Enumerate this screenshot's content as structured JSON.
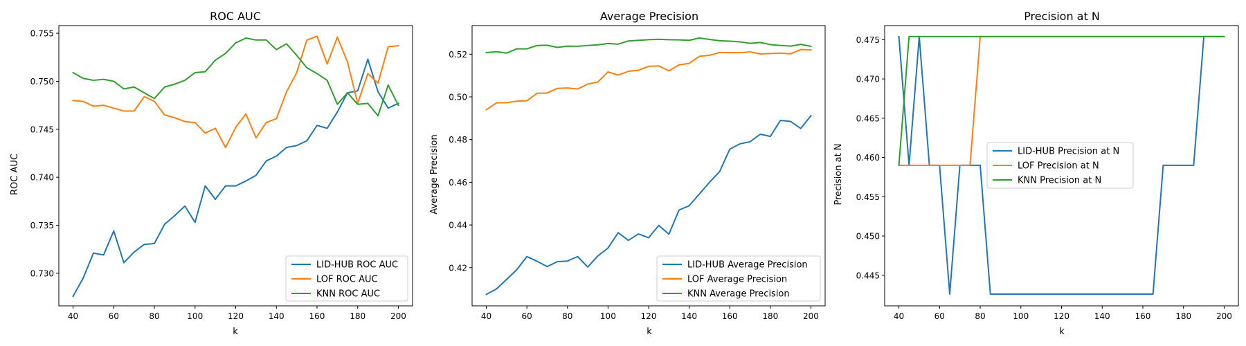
{
  "chart_data": [
    {
      "type": "line",
      "title": "ROC AUC",
      "xlabel": "k",
      "ylabel": "ROC AUC",
      "xlim": [
        33,
        207
      ],
      "ylim": [
        0.7266,
        0.7558
      ],
      "xticks": [
        40,
        60,
        80,
        100,
        120,
        140,
        160,
        180,
        200
      ],
      "yticks": [
        0.73,
        0.735,
        0.74,
        0.745,
        0.75,
        0.755
      ],
      "ytick_decimals": 3,
      "legend_position": "lower right",
      "x": [
        40,
        45,
        50,
        55,
        60,
        65,
        70,
        75,
        80,
        85,
        90,
        95,
        100,
        105,
        110,
        115,
        120,
        125,
        130,
        135,
        140,
        145,
        150,
        155,
        160,
        165,
        170,
        175,
        180,
        185,
        190,
        195,
        200
      ],
      "series": [
        {
          "name": "LID-HUB ROC AUC",
          "color": "#1f77b4",
          "values": [
            0.7276,
            0.7295,
            0.7321,
            0.7319,
            0.7344,
            0.7311,
            0.7322,
            0.733,
            0.7331,
            0.7351,
            0.736,
            0.737,
            0.7353,
            0.7391,
            0.7377,
            0.7391,
            0.7391,
            0.7396,
            0.7402,
            0.7417,
            0.7422,
            0.7431,
            0.7433,
            0.7438,
            0.7454,
            0.7451,
            0.7468,
            0.7488,
            0.749,
            0.7523,
            0.7489,
            0.7472,
            0.7477
          ]
        },
        {
          "name": "LOF ROC AUC",
          "color": "#ff7f0e",
          "values": [
            0.748,
            0.7479,
            0.7474,
            0.7475,
            0.7472,
            0.7469,
            0.7469,
            0.7484,
            0.7479,
            0.7465,
            0.7462,
            0.7458,
            0.7457,
            0.7446,
            0.7451,
            0.7431,
            0.7452,
            0.7466,
            0.7441,
            0.7457,
            0.7461,
            0.7489,
            0.7509,
            0.7543,
            0.7547,
            0.7518,
            0.7546,
            0.752,
            0.7477,
            0.7508,
            0.7498,
            0.7536,
            0.7537
          ]
        },
        {
          "name": "KNN ROC AUC",
          "color": "#2ca02c",
          "values": [
            0.7509,
            0.7503,
            0.7501,
            0.7502,
            0.75,
            0.7492,
            0.7494,
            0.7488,
            0.7482,
            0.7494,
            0.7497,
            0.7501,
            0.7509,
            0.751,
            0.7522,
            0.7529,
            0.754,
            0.7545,
            0.7543,
            0.7543,
            0.7533,
            0.7539,
            0.7527,
            0.7514,
            0.7508,
            0.7501,
            0.7476,
            0.7488,
            0.7476,
            0.7477,
            0.7464,
            0.7496,
            0.7475
          ]
        }
      ]
    },
    {
      "type": "line",
      "title": "Average Precision",
      "xlabel": "k",
      "ylabel": "Average Precision",
      "xlim": [
        33,
        207
      ],
      "ylim": [
        0.4021,
        0.5334
      ],
      "xticks": [
        40,
        60,
        80,
        100,
        120,
        140,
        160,
        180,
        200
      ],
      "yticks": [
        0.42,
        0.44,
        0.46,
        0.48,
        0.5,
        0.52
      ],
      "ytick_decimals": 2,
      "legend_position": "lower right",
      "x": [
        40,
        45,
        50,
        55,
        60,
        65,
        70,
        75,
        80,
        85,
        90,
        95,
        100,
        105,
        110,
        115,
        120,
        125,
        130,
        135,
        140,
        145,
        150,
        155,
        160,
        165,
        170,
        175,
        180,
        185,
        190,
        195,
        200
      ],
      "series": [
        {
          "name": "LID-HUB Average Precision",
          "color": "#1f77b4",
          "values": [
            0.4075,
            0.41,
            0.4145,
            0.419,
            0.4252,
            0.423,
            0.4205,
            0.4228,
            0.4231,
            0.4252,
            0.4203,
            0.4255,
            0.4292,
            0.4364,
            0.4328,
            0.4358,
            0.434,
            0.4398,
            0.4357,
            0.447,
            0.449,
            0.4545,
            0.46,
            0.465,
            0.4755,
            0.478,
            0.479,
            0.4825,
            0.4815,
            0.489,
            0.4885,
            0.4852,
            0.4912
          ]
        },
        {
          "name": "LOF Average Precision",
          "color": "#ff7f0e",
          "values": [
            0.494,
            0.4972,
            0.4973,
            0.498,
            0.4982,
            0.5017,
            0.5018,
            0.504,
            0.5042,
            0.5037,
            0.506,
            0.507,
            0.5117,
            0.5102,
            0.512,
            0.5125,
            0.5143,
            0.5145,
            0.5122,
            0.515,
            0.5157,
            0.519,
            0.5195,
            0.5208,
            0.5207,
            0.5207,
            0.5211,
            0.5201,
            0.5203,
            0.5205,
            0.5202,
            0.5222,
            0.522
          ]
        },
        {
          "name": "KNN Average Precision",
          "color": "#2ca02c",
          "values": [
            0.5207,
            0.5212,
            0.5205,
            0.5225,
            0.5225,
            0.5241,
            0.5242,
            0.5232,
            0.5238,
            0.5237,
            0.5241,
            0.5244,
            0.525,
            0.5247,
            0.5262,
            0.5265,
            0.5268,
            0.527,
            0.5268,
            0.5267,
            0.5265,
            0.5276,
            0.5269,
            0.5263,
            0.5261,
            0.5258,
            0.5251,
            0.5255,
            0.5245,
            0.5241,
            0.5238,
            0.5246,
            0.5237
          ]
        }
      ]
    },
    {
      "type": "line",
      "title": "Precision at N",
      "xlabel": "k",
      "ylabel": "Precision at N",
      "xlim": [
        33,
        207
      ],
      "ylim": [
        0.4411,
        0.4768
      ],
      "xticks": [
        40,
        60,
        80,
        100,
        120,
        140,
        160,
        180,
        200
      ],
      "yticks": [
        0.445,
        0.45,
        0.455,
        0.46,
        0.465,
        0.47,
        0.475
      ],
      "ytick_decimals": 3,
      "legend_position": "center left",
      "x": [
        40,
        45,
        50,
        55,
        60,
        65,
        70,
        75,
        80,
        85,
        90,
        95,
        100,
        105,
        110,
        115,
        120,
        125,
        130,
        135,
        140,
        145,
        150,
        155,
        160,
        165,
        170,
        175,
        180,
        185,
        190,
        195,
        200
      ],
      "series": [
        {
          "name": "LID-HUB Precision at N",
          "color": "#1f77b4",
          "values": [
            0.4754,
            0.459,
            0.4754,
            0.459,
            0.459,
            0.4426,
            0.459,
            0.459,
            0.459,
            0.4426,
            0.4426,
            0.4426,
            0.4426,
            0.4426,
            0.4426,
            0.4426,
            0.4426,
            0.4426,
            0.4426,
            0.4426,
            0.4426,
            0.4426,
            0.4426,
            0.4426,
            0.4426,
            0.4426,
            0.459,
            0.459,
            0.459,
            0.459,
            0.4754,
            0.4754,
            0.4754
          ]
        },
        {
          "name": "LOF Precision at N",
          "color": "#ff7f0e",
          "values": [
            0.459,
            0.459,
            0.459,
            0.459,
            0.459,
            0.459,
            0.459,
            0.459,
            0.4754,
            0.4754,
            0.4754,
            0.4754,
            0.4754,
            0.4754,
            0.4754,
            0.4754,
            0.4754,
            0.4754,
            0.4754,
            0.4754,
            0.4754,
            0.4754,
            0.4754,
            0.4754,
            0.4754,
            0.4754,
            0.4754,
            0.4754,
            0.4754,
            0.4754,
            0.4754,
            0.4754,
            0.4754
          ]
        },
        {
          "name": "KNN Precision at N",
          "color": "#2ca02c",
          "values": [
            0.459,
            0.4754,
            0.4754,
            0.4754,
            0.4754,
            0.4754,
            0.4754,
            0.4754,
            0.4754,
            0.4754,
            0.4754,
            0.4754,
            0.4754,
            0.4754,
            0.4754,
            0.4754,
            0.4754,
            0.4754,
            0.4754,
            0.4754,
            0.4754,
            0.4754,
            0.4754,
            0.4754,
            0.4754,
            0.4754,
            0.4754,
            0.4754,
            0.4754,
            0.4754,
            0.4754,
            0.4754,
            0.4754
          ]
        }
      ]
    }
  ]
}
